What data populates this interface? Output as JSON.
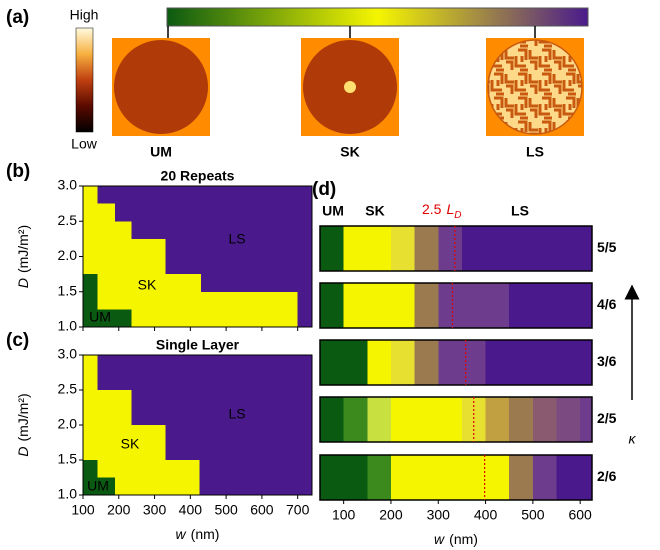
{
  "panel_a": {
    "label": "(a)",
    "scale_high": "High",
    "scale_low": "Low",
    "scale_colors": [
      "#fffbe0",
      "#f7b040",
      "#c04010",
      "#5a0a00",
      "#000000"
    ],
    "phase_bar_colors": [
      "#0b5a12",
      "#f5f500",
      "#4a1a8c"
    ],
    "images": [
      "UM",
      "SK",
      "LS"
    ]
  },
  "chart_data": [
    {
      "type": "phase-map",
      "label": "(b)",
      "title": "20 Repeats",
      "ylabel": "D",
      "yunit": "(mJ/m²)",
      "xlim": [
        100,
        740
      ],
      "xticks": [
        100,
        200,
        300,
        400,
        500,
        600,
        700
      ],
      "ylim": [
        1,
        3
      ],
      "yticks": [
        {
          "value": 1,
          "label": "1.0"
        },
        {
          "value": 1.5,
          "label": "1.5"
        },
        {
          "value": 2,
          "label": "2.0"
        },
        {
          "value": 2.5,
          "label": "2.5"
        },
        {
          "value": 3,
          "label": "3.0"
        }
      ],
      "rows": [
        1,
        1.25,
        1.5,
        1.75,
        2,
        2.25,
        2.5,
        2.75,
        3
      ],
      "um_end": [
        235,
        140,
        140,
        null,
        null,
        null,
        null,
        null
      ],
      "sk_end": [
        700,
        700,
        430,
        330,
        330,
        235,
        190,
        140
      ],
      "phases": [
        {
          "name": "UM",
          "color": "#0b5a12",
          "label_color": "#000000"
        },
        {
          "name": "SK",
          "color": "#f5f500",
          "label_color": "#000000"
        },
        {
          "name": "LS",
          "color": "#4a1a8c",
          "label_color": "#ffffff"
        }
      ]
    },
    {
      "type": "phase-map",
      "label": "(c)",
      "title": "Single Layer",
      "ylabel": "D",
      "yunit": "(mJ/m²)",
      "xlabel": "w",
      "xunit": "(nm)",
      "xlim": [
        100,
        740
      ],
      "xticks": [
        100,
        200,
        300,
        400,
        500,
        600,
        700
      ],
      "ylim": [
        1,
        3
      ],
      "yticks": [
        {
          "value": 1,
          "label": "1.0"
        },
        {
          "value": 1.5,
          "label": "1.5"
        },
        {
          "value": 2,
          "label": "2.0"
        },
        {
          "value": 2.5,
          "label": "2.5"
        },
        {
          "value": 3,
          "label": "3.0"
        }
      ],
      "rows": [
        1,
        1.25,
        1.5,
        1.75,
        2,
        2.25,
        2.5,
        2.75,
        3
      ],
      "um_end": [
        190,
        140,
        null,
        null,
        null,
        null,
        null,
        null
      ],
      "sk_end": [
        425,
        425,
        330,
        330,
        235,
        235,
        140,
        140
      ],
      "phases": [
        {
          "name": "UM",
          "color": "#0b5a12",
          "label_color": "#000000"
        },
        {
          "name": "SK",
          "color": "#f5f500",
          "label_color": "#000000"
        },
        {
          "name": "LS",
          "color": "#4a1a8c",
          "label_color": "#ffffff"
        }
      ]
    },
    {
      "type": "cell-bars",
      "label": "(d)",
      "phase_labels": [
        "UM",
        "SK",
        "LS"
      ],
      "ld_label": {
        "prefix": "2.5",
        "symbol": "L",
        "subscript": "D"
      },
      "ld_color": "#e00000",
      "xlabel": "w",
      "xunit": "(nm)",
      "arrow_label": "κ",
      "xlim": [
        50,
        625
      ],
      "xticks": [
        100,
        200,
        300,
        400,
        500,
        600
      ],
      "bins": [
        50,
        100,
        150,
        200,
        250,
        300,
        350,
        400,
        450,
        500,
        550,
        600,
        625
      ],
      "series": [
        {
          "name": "5/5",
          "ld": 335,
          "colors": [
            "#0b5a12",
            "#f5f500",
            "#f5f500",
            "#e8e030",
            "#9c7a50",
            "#6e3c8c",
            "#4a1a8c",
            "#4a1a8c",
            "#4a1a8c",
            "#4a1a8c",
            "#4a1a8c",
            "#4a1a8c"
          ]
        },
        {
          "name": "4/6",
          "ld": 330,
          "colors": [
            "#0b5a12",
            "#f5f500",
            "#f5f500",
            "#f5f500",
            "#9c7a50",
            "#6e3c8c",
            "#6e3c8c",
            "#6e3c8c",
            "#4a1a8c",
            "#4a1a8c",
            "#4a1a8c",
            "#4a1a8c"
          ]
        },
        {
          "name": "3/6",
          "ld": 358,
          "colors": [
            "#0b5a12",
            "#0b5a12",
            "#f5f500",
            "#e8e030",
            "#9c7a50",
            "#6e3c8c",
            "#6e3c8c",
            "#4a1a8c",
            "#4a1a8c",
            "#4a1a8c",
            "#4a1a8c",
            "#4a1a8c"
          ]
        },
        {
          "name": "2/5",
          "ld": 375,
          "colors": [
            "#0b5a12",
            "#3c8a1e",
            "#c8e040",
            "#f5f500",
            "#f5f500",
            "#f5f500",
            "#e8e030",
            "#c0a040",
            "#9c7a50",
            "#8a5a70",
            "#7a4a80",
            "#6e3c8c"
          ]
        },
        {
          "name": "2/6",
          "ld": 398,
          "colors": [
            "#0b5a12",
            "#0b5a12",
            "#3c8a1e",
            "#f5f500",
            "#f5f500",
            "#f5f500",
            "#f5f500",
            "#f5f500",
            "#9c7a50",
            "#6e3c8c",
            "#4a1a8c",
            "#4a1a8c"
          ]
        }
      ]
    }
  ]
}
